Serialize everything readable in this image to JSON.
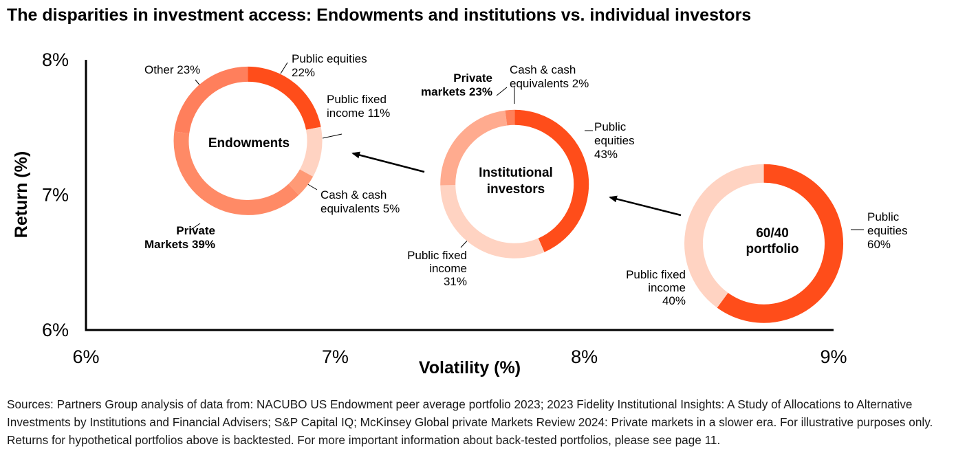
{
  "title": "The disparities in investment access: Endowments and institutions vs. individual investors",
  "sources": "Sources: Partners Group analysis of data from: NACUBO US Endowment peer average portfolio 2023; 2023 Fidelity Institutional Insights: A Study of Allocations to Alternative Investments by Institutions and Financial Advisers; S&P Capital IQ; McKinsey Global private Markets Review 2024: Private markets in a slower era. For illustrative purposes only. Returns for hypothetical portfolios above is backtested. For more important information about back-tested portfolios, please see page 11.",
  "colors": {
    "public_equities": "#ff4d1a",
    "public_fixed_income": "#ffd3c2",
    "cash": "#ff9a76",
    "private_markets": "#ff8a66",
    "other": "#ff7f5c",
    "axis": "#000000"
  },
  "chart_data": {
    "type": "scatter",
    "title": "The disparities in investment access: Endowments and institutions vs. individual investors",
    "xlabel": "Volatility (%)",
    "ylabel": "Return (%)",
    "xlim": [
      6,
      9
    ],
    "ylim": [
      6,
      8
    ],
    "x_ticks": [
      "6%",
      "7%",
      "8%",
      "9%"
    ],
    "y_ticks": [
      "6%",
      "7%",
      "8%"
    ],
    "grid": false,
    "points": [
      {
        "name": "Endowments",
        "x": 6.65,
        "y": 7.4,
        "slices": [
          {
            "label": "Public equities",
            "value": 22,
            "color": "#ff4d1a"
          },
          {
            "label": "Public fixed income",
            "value": 11,
            "color": "#ffd3c2"
          },
          {
            "label": "Cash & cash equivalents",
            "value": 5,
            "color": "#ff9a76"
          },
          {
            "label": "Private Markets",
            "value": 39,
            "color": "#ff8a66"
          },
          {
            "label": "Other",
            "value": 23,
            "color": "#ff7f5c"
          }
        ]
      },
      {
        "name": "Institutional investors",
        "x": 7.72,
        "y": 7.08,
        "slices": [
          {
            "label": "Public equities",
            "value": 43,
            "color": "#ff4d1a"
          },
          {
            "label": "Public fixed income",
            "value": 31,
            "color": "#ffd3c2"
          },
          {
            "label": "Private markets",
            "value": 23,
            "color": "#ffab8f"
          },
          {
            "label": "Cash & cash equivalents",
            "value": 2,
            "color": "#ff8059"
          }
        ]
      },
      {
        "name": "60/40 portfolio",
        "x": 8.72,
        "y": 6.64,
        "slices": [
          {
            "label": "Public equities",
            "value": 60,
            "color": "#ff4d1a"
          },
          {
            "label": "Public fixed income",
            "value": 40,
            "color": "#ffd3c2"
          }
        ]
      }
    ],
    "slice_labels": {
      "endowments": {
        "pe": [
          "Public equities",
          "22%"
        ],
        "pfi": [
          "Public fixed",
          "income 11%"
        ],
        "cash": [
          "Cash & cash",
          "equivalents 5%"
        ],
        "pm": [
          "Private",
          "Markets 39%"
        ],
        "other": [
          "Other 23%"
        ],
        "center": [
          "Endowments"
        ]
      },
      "institutional": {
        "pm": [
          "Private",
          "markets 23%"
        ],
        "cash": [
          "Cash & cash",
          "equivalents 2%"
        ],
        "pe": [
          "Public",
          "equities",
          "43%"
        ],
        "pfi": [
          "Public fixed",
          "income",
          "31%"
        ],
        "center": [
          "Institutional",
          "investors"
        ]
      },
      "sixty_forty": {
        "pe": [
          "Public",
          "equities",
          "60%"
        ],
        "pfi": [
          "Public fixed",
          "income",
          "40%"
        ],
        "center": [
          "60/40",
          "portfolio"
        ]
      }
    }
  }
}
